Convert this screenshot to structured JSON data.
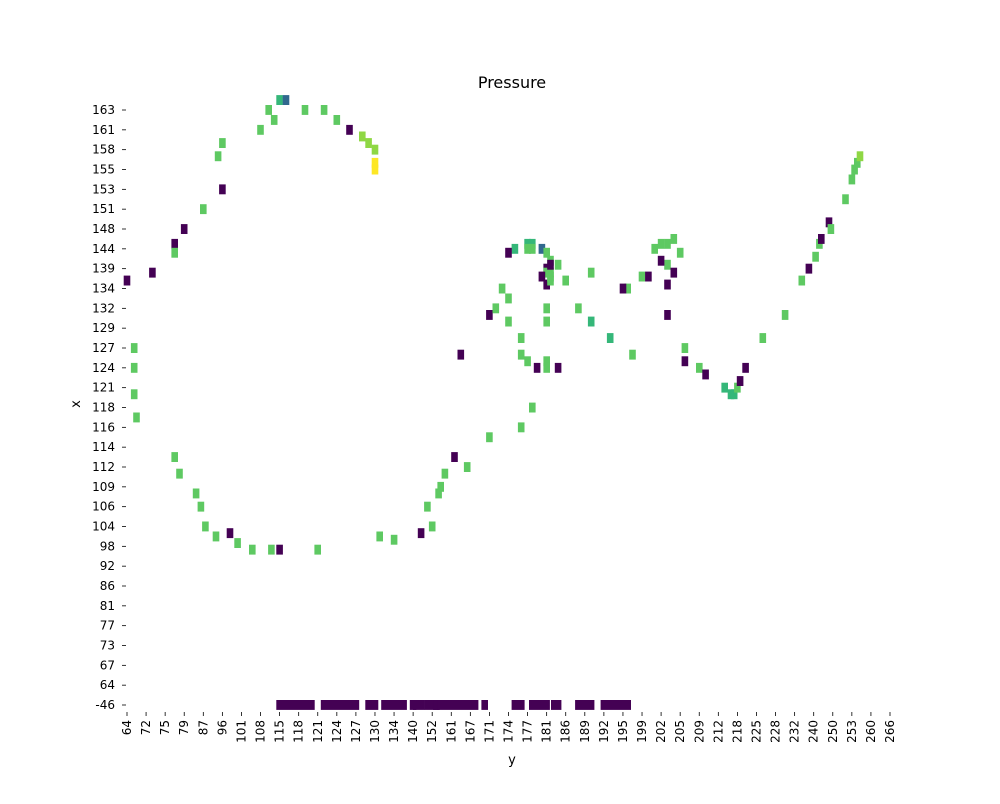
{
  "chart_data": {
    "type": "heatmap",
    "title": "Pressure",
    "xlabel": "y",
    "ylabel": "x",
    "x_ticks": [
      "64",
      "72",
      "75",
      "79",
      "87",
      "96",
      "101",
      "108",
      "115",
      "118",
      "121",
      "124",
      "127",
      "130",
      "134",
      "140",
      "152",
      "161",
      "167",
      "171",
      "174",
      "177",
      "181",
      "186",
      "189",
      "192",
      "195",
      "199",
      "202",
      "205",
      "209",
      "212",
      "218",
      "225",
      "228",
      "232",
      "240",
      "250",
      "253",
      "260",
      "266"
    ],
    "y_ticks": [
      "163",
      "161",
      "158",
      "155",
      "153",
      "151",
      "148",
      "144",
      "139",
      "134",
      "132",
      "129",
      "127",
      "124",
      "121",
      "118",
      "116",
      "114",
      "112",
      "109",
      "106",
      "104",
      "98",
      "92",
      "86",
      "81",
      "77",
      "73",
      "67",
      "64",
      "-46"
    ],
    "colormap": [
      "#440154",
      "#31688e",
      "#35b779",
      "#5ec962",
      "#8fd744",
      "#fde725"
    ],
    "cells": [
      [
        115,
        164,
        2
      ],
      [
        116,
        164,
        1
      ],
      [
        111,
        163,
        3
      ],
      [
        119,
        163,
        3
      ],
      [
        122,
        163,
        3
      ],
      [
        113,
        162,
        3
      ],
      [
        124,
        162,
        3
      ],
      [
        108,
        161,
        3
      ],
      [
        126,
        161,
        0
      ],
      [
        128,
        160,
        4
      ],
      [
        96,
        159,
        3
      ],
      [
        129,
        159,
        4
      ],
      [
        130,
        158,
        4
      ],
      [
        94,
        157,
        3
      ],
      [
        130,
        156,
        5
      ],
      [
        130,
        155,
        5
      ],
      [
        96,
        153,
        0
      ],
      [
        87,
        151,
        3
      ],
      [
        79,
        148,
        0
      ],
      [
        77,
        145,
        0
      ],
      [
        77,
        143,
        3
      ],
      [
        73,
        138,
        0
      ],
      [
        64,
        136,
        0
      ],
      [
        67,
        127,
        3
      ],
      [
        67,
        124,
        3
      ],
      [
        67,
        120,
        3
      ],
      [
        68,
        117,
        3
      ],
      [
        77,
        113,
        3
      ],
      [
        78,
        111,
        3
      ],
      [
        84,
        108,
        3
      ],
      [
        86,
        106,
        3
      ],
      [
        88,
        104,
        3
      ],
      [
        98,
        102,
        0
      ],
      [
        93,
        101,
        3
      ],
      [
        100,
        99,
        3
      ],
      [
        105,
        97,
        3
      ],
      [
        112,
        97,
        3
      ],
      [
        115,
        97,
        0
      ],
      [
        121,
        97,
        3
      ],
      [
        131,
        101,
        3
      ],
      [
        134,
        100,
        3
      ],
      [
        145,
        102,
        0
      ],
      [
        152,
        104,
        3
      ],
      [
        149,
        106,
        3
      ],
      [
        155,
        108,
        3
      ],
      [
        156,
        109,
        3
      ],
      [
        158,
        111,
        3
      ],
      [
        162,
        113,
        0
      ],
      [
        166,
        112,
        3
      ],
      [
        171,
        115,
        3
      ],
      [
        176,
        116,
        3
      ],
      [
        178,
        118,
        3
      ],
      [
        164,
        126,
        0
      ],
      [
        174,
        133,
        3
      ],
      [
        173,
        134,
        3
      ],
      [
        171,
        131,
        0
      ],
      [
        172,
        132,
        3
      ],
      [
        174,
        130,
        3
      ],
      [
        176,
        128,
        3
      ],
      [
        176,
        126,
        3
      ],
      [
        177,
        125,
        3
      ],
      [
        181,
        125,
        3
      ],
      [
        181,
        124,
        3
      ],
      [
        179,
        124,
        0
      ],
      [
        184,
        124,
        0
      ],
      [
        178,
        145,
        2
      ],
      [
        177,
        145,
        2
      ],
      [
        178,
        144,
        3
      ],
      [
        177,
        144,
        3
      ],
      [
        175,
        144,
        2
      ],
      [
        174,
        143,
        0
      ],
      [
        180,
        144,
        1
      ],
      [
        181,
        143,
        3
      ],
      [
        182,
        141,
        3
      ],
      [
        184,
        140,
        3
      ],
      [
        190,
        138,
        3
      ],
      [
        186,
        136,
        3
      ],
      [
        181,
        135,
        0
      ],
      [
        188,
        132,
        3
      ],
      [
        190,
        130,
        2
      ],
      [
        193,
        128,
        2
      ],
      [
        197,
        126,
        3
      ],
      [
        181,
        130,
        3
      ],
      [
        181,
        132,
        3
      ],
      [
        182,
        138,
        3
      ],
      [
        181,
        139,
        0
      ],
      [
        181,
        138,
        3
      ],
      [
        182,
        140,
        0
      ],
      [
        180,
        137,
        0
      ],
      [
        182,
        136,
        3
      ],
      [
        182,
        137,
        3
      ],
      [
        196,
        134,
        3
      ],
      [
        195,
        134,
        0
      ],
      [
        199,
        137,
        3
      ],
      [
        200,
        137,
        0
      ],
      [
        203,
        140,
        3
      ],
      [
        204,
        138,
        0
      ],
      [
        201,
        144,
        3
      ],
      [
        202,
        145,
        3
      ],
      [
        203,
        145,
        3
      ],
      [
        204,
        146,
        3
      ],
      [
        205,
        143,
        3
      ],
      [
        202,
        141,
        0
      ],
      [
        203,
        135,
        0
      ],
      [
        203,
        131,
        0
      ],
      [
        206,
        127,
        3
      ],
      [
        206,
        125,
        0
      ],
      [
        209,
        124,
        3
      ],
      [
        210,
        123,
        0
      ],
      [
        214,
        121,
        2
      ],
      [
        216,
        120,
        2
      ],
      [
        217,
        120,
        2
      ],
      [
        218,
        121,
        3
      ],
      [
        219,
        122,
        0
      ],
      [
        221,
        124,
        0
      ],
      [
        226,
        128,
        3
      ],
      [
        230,
        131,
        3
      ],
      [
        235,
        136,
        3
      ],
      [
        238,
        139,
        0
      ],
      [
        241,
        142,
        3
      ],
      [
        243,
        145,
        3
      ],
      [
        244,
        146,
        0
      ],
      [
        248,
        149,
        0
      ],
      [
        249,
        148,
        3
      ],
      [
        252,
        152,
        3
      ],
      [
        253,
        154,
        3
      ],
      [
        254,
        155,
        3
      ],
      [
        255,
        156,
        3
      ],
      [
        256,
        157,
        4
      ]
    ],
    "bottom_bar_segments": [
      [
        115,
        120
      ],
      [
        122,
        127
      ],
      [
        129,
        130
      ],
      [
        132,
        137
      ],
      [
        140,
        140
      ],
      [
        142,
        145
      ],
      [
        149,
        153
      ],
      [
        154,
        154
      ],
      [
        156,
        168
      ],
      [
        170,
        170
      ],
      [
        175,
        176
      ],
      [
        178,
        181
      ],
      [
        183,
        184
      ],
      [
        188,
        190
      ],
      [
        192,
        196
      ]
    ]
  }
}
